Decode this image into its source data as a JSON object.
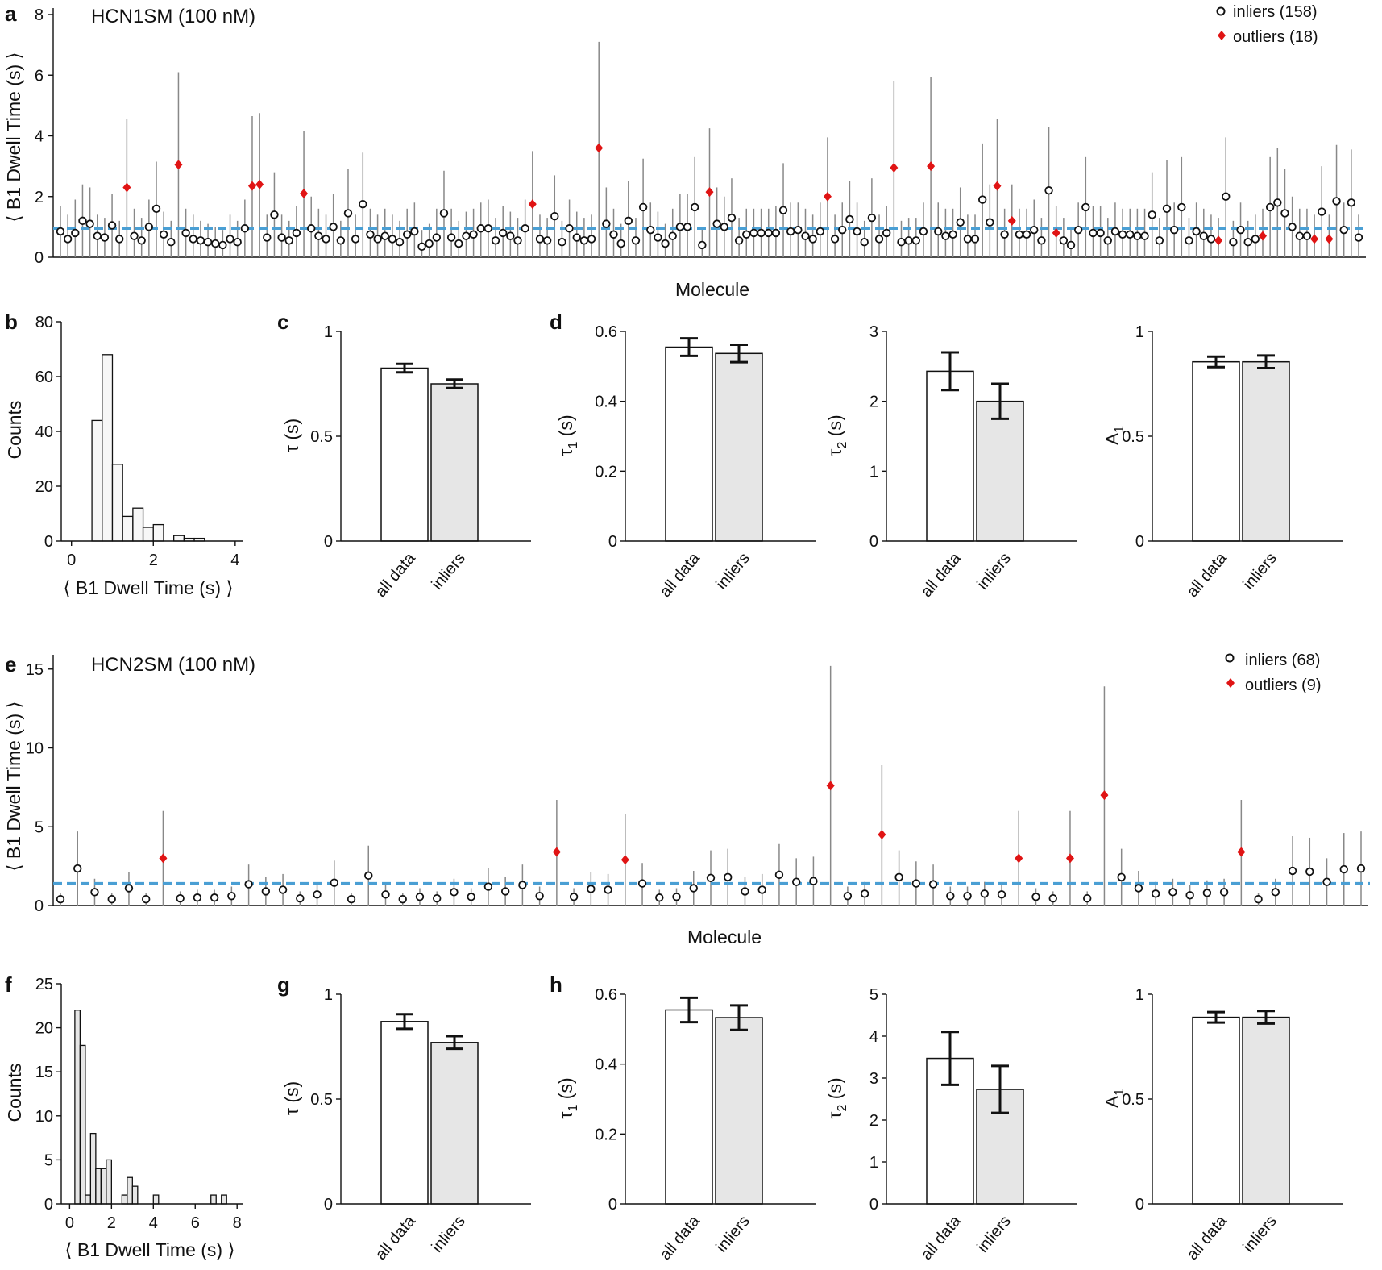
{
  "panels": {
    "a": {
      "letter": "a",
      "title": "HCN1SM (100 nM)",
      "xlabel": "Molecule",
      "ylabel": "⟨ B1 Dwell Time (s) ⟩",
      "yticks": [
        0,
        2,
        4,
        6,
        8
      ],
      "legend_inliers": "inliers (158)",
      "legend_outliers": "outliers (18)"
    },
    "b": {
      "letter": "b",
      "xlabel": "⟨ B1 Dwell Time (s) ⟩",
      "ylabel": "Counts",
      "xticks": [
        0,
        2,
        4
      ],
      "yticks": [
        0,
        20,
        40,
        60,
        80
      ]
    },
    "c": {
      "letter": "c",
      "ylabel": "τ (s)",
      "yticks": [
        "0",
        "0.5",
        "1"
      ],
      "cats": [
        "all data",
        "inliers"
      ]
    },
    "d": {
      "letter": "d",
      "sub": [
        {
          "ylabel_main": "τ",
          "ylabel_sub": "1",
          "ylabel_tail": " (s)",
          "yticks": [
            "0",
            "0.2",
            "0.4",
            "0.6"
          ],
          "cats": [
            "all data",
            "inliers"
          ]
        },
        {
          "ylabel_main": "τ",
          "ylabel_sub": "2",
          "ylabel_tail": " (s)",
          "yticks": [
            "0",
            "1",
            "2",
            "3"
          ],
          "cats": [
            "all data",
            "inliers"
          ]
        },
        {
          "ylabel_main": "A",
          "ylabel_sub": "1",
          "ylabel_tail": "",
          "yticks": [
            "0",
            "0.5",
            "1"
          ],
          "cats": [
            "all data",
            "inliers"
          ]
        }
      ]
    },
    "e": {
      "letter": "e",
      "title": "HCN2SM (100 nM)",
      "xlabel": "Molecule",
      "ylabel": "⟨ B1 Dwell Time (s) ⟩",
      "yticks": [
        0,
        5,
        10,
        15
      ],
      "legend_inliers": "inliers (68)",
      "legend_outliers": "outliers (9)"
    },
    "f": {
      "letter": "f",
      "xlabel": "⟨ B1 Dwell Time (s) ⟩",
      "ylabel": "Counts",
      "xticks": [
        0,
        2,
        4,
        6,
        8
      ],
      "yticks": [
        0,
        5,
        10,
        15,
        20,
        25
      ]
    },
    "g": {
      "letter": "g",
      "ylabel": "τ (s)",
      "yticks": [
        "0",
        "0.5",
        "1"
      ],
      "cats": [
        "all data",
        "inliers"
      ]
    },
    "h": {
      "letter": "h",
      "sub": [
        {
          "ylabel_main": "τ",
          "ylabel_sub": "1",
          "ylabel_tail": " (s)",
          "yticks": [
            "0",
            "0.2",
            "0.4",
            "0.6"
          ],
          "cats": [
            "all data",
            "inliers"
          ]
        },
        {
          "ylabel_main": "τ",
          "ylabel_sub": "2",
          "ylabel_tail": " (s)",
          "yticks": [
            "0",
            "1",
            "2",
            "3",
            "4",
            "5"
          ],
          "cats": [
            "all data",
            "inliers"
          ]
        },
        {
          "ylabel_main": "A",
          "ylabel_sub": "1",
          "ylabel_tail": "",
          "yticks": [
            "0",
            "0.5",
            "1"
          ],
          "cats": [
            "all data",
            "inliers"
          ]
        }
      ]
    }
  },
  "colors": {
    "outlier": "#e01414",
    "mean_line": "#4a9fd4",
    "inlier_bar": "#e6e6e6",
    "errbar_line": "#888888"
  },
  "chart_data": [
    {
      "id": "a",
      "type": "scatter",
      "ylim": [
        0,
        8
      ],
      "threshold": 0.95,
      "n_molecules": 176,
      "values": [
        0.85,
        0.6,
        0.8,
        1.2,
        1.1,
        0.7,
        0.65,
        1.05,
        0.6,
        2.3,
        0.7,
        0.55,
        1.0,
        1.6,
        0.75,
        0.5,
        3.05,
        0.8,
        0.6,
        0.55,
        0.5,
        0.45,
        0.4,
        0.6,
        0.5,
        0.95,
        2.35,
        2.4,
        0.65,
        1.4,
        0.65,
        0.55,
        0.8,
        2.1,
        0.95,
        0.7,
        0.6,
        1.0,
        0.55,
        1.45,
        0.6,
        1.75,
        0.75,
        0.6,
        0.7,
        0.6,
        0.5,
        0.75,
        0.85,
        0.35,
        0.45,
        0.65,
        1.45,
        0.65,
        0.45,
        0.7,
        0.75,
        0.95,
        0.95,
        0.55,
        0.8,
        0.7,
        0.55,
        0.95,
        1.75,
        0.6,
        0.55,
        1.35,
        0.5,
        0.95,
        0.65,
        0.55,
        0.6,
        3.6,
        1.1,
        0.75,
        0.45,
        1.2,
        0.55,
        1.65,
        0.9,
        0.65,
        0.45,
        0.7,
        1.0,
        1.0,
        1.65,
        0.4,
        2.15,
        1.1,
        1.0,
        1.3,
        0.55,
        0.75,
        0.8,
        0.8,
        0.8,
        0.8,
        1.55,
        0.85,
        0.9,
        0.7,
        0.6,
        0.85,
        2.0,
        0.6,
        0.9,
        1.25,
        0.85,
        0.5,
        1.3,
        0.6,
        0.8,
        2.95,
        0.5,
        0.55,
        0.55,
        0.85,
        3.0,
        0.85,
        0.7,
        0.75,
        1.15,
        0.6,
        0.6,
        1.9,
        1.15,
        2.35,
        0.75,
        1.2,
        0.75,
        0.75,
        0.9,
        0.55,
        2.2,
        0.8,
        0.55,
        0.4,
        0.9,
        1.65,
        0.8,
        0.8,
        0.55,
        0.85,
        0.75,
        0.75,
        0.7,
        0.7,
        1.4,
        0.55,
        1.6,
        0.9,
        1.65,
        0.55,
        0.85,
        0.7,
        0.6,
        0.55,
        2.0,
        0.5,
        0.9,
        0.5,
        0.6,
        0.7,
        1.65,
        1.8,
        1.45,
        1.0,
        0.7,
        0.7,
        0.6,
        1.5,
        0.6,
        1.85,
        0.9,
        1.8,
        0.65
      ],
      "upper": [
        1.7,
        1.4,
        1.9,
        2.4,
        2.3,
        1.4,
        1.3,
        2.1,
        1.2,
        4.55,
        1.6,
        1.3,
        1.9,
        3.15,
        1.5,
        1.2,
        6.1,
        1.6,
        1.4,
        1.2,
        1.1,
        1.0,
        0.9,
        1.4,
        1.2,
        1.9,
        4.65,
        4.75,
        1.4,
        2.8,
        1.4,
        1.2,
        1.7,
        4.15,
        2.0,
        1.6,
        1.4,
        2.1,
        1.2,
        2.9,
        1.4,
        3.45,
        1.6,
        1.4,
        1.6,
        1.4,
        1.2,
        1.6,
        1.8,
        0.9,
        1.1,
        1.6,
        2.85,
        1.6,
        1.2,
        1.5,
        1.6,
        1.8,
        1.9,
        1.3,
        1.7,
        1.5,
        1.3,
        1.9,
        3.5,
        1.4,
        1.3,
        2.7,
        1.2,
        1.9,
        1.5,
        1.3,
        1.4,
        7.1,
        2.3,
        1.6,
        1.1,
        2.5,
        1.3,
        3.25,
        1.8,
        1.5,
        1.1,
        1.6,
        2.1,
        2.1,
        3.3,
        1.0,
        4.25,
        2.3,
        2.0,
        2.6,
        1.3,
        1.6,
        1.6,
        1.6,
        1.6,
        1.7,
        3.1,
        1.8,
        1.8,
        1.6,
        1.4,
        1.8,
        3.95,
        1.4,
        1.8,
        2.5,
        1.8,
        1.2,
        2.6,
        1.4,
        1.7,
        5.8,
        1.2,
        1.3,
        1.3,
        1.8,
        5.95,
        1.8,
        1.6,
        1.6,
        2.3,
        1.4,
        1.4,
        3.75,
        2.4,
        4.55,
        1.6,
        2.4,
        1.6,
        1.6,
        1.9,
        1.3,
        4.3,
        1.7,
        1.3,
        1.0,
        1.8,
        3.3,
        1.7,
        1.7,
        1.3,
        1.8,
        1.6,
        1.6,
        1.6,
        1.6,
        2.8,
        1.3,
        3.2,
        1.8,
        3.3,
        1.3,
        1.8,
        1.6,
        1.4,
        1.3,
        3.95,
        1.2,
        1.8,
        1.2,
        1.4,
        1.6,
        3.3,
        3.6,
        2.9,
        2.0,
        1.6,
        1.6,
        1.4,
        3.0,
        1.4,
        3.7,
        1.8,
        3.55,
        1.4
      ],
      "outliers": [
        9,
        16,
        26,
        27,
        33,
        64,
        73,
        88,
        104,
        113,
        118,
        127,
        129,
        135,
        157,
        163,
        170,
        172
      ]
    },
    {
      "id": "b",
      "type": "bar",
      "bin_edges": [
        0.25,
        0.5,
        0.75,
        1.0,
        1.25,
        1.5,
        1.75,
        2.0,
        2.25,
        2.5,
        2.75,
        3.0,
        3.25,
        3.5
      ],
      "values": [
        0,
        44,
        68,
        28,
        9,
        12,
        5,
        6,
        0,
        2,
        1,
        1,
        0
      ],
      "xlim": [
        -0.25,
        4.2
      ],
      "ylim": [
        0,
        80
      ]
    },
    {
      "id": "c",
      "type": "bar",
      "categories": [
        "all data",
        "inliers"
      ],
      "values": [
        0.825,
        0.75
      ],
      "errors": [
        0.02,
        0.02
      ],
      "ylim": [
        0,
        1
      ]
    },
    {
      "id": "d",
      "type": "bar",
      "subplots": [
        {
          "categories": [
            "all data",
            "inliers"
          ],
          "values": [
            0.555,
            0.537
          ],
          "errors": [
            0.025,
            0.025
          ],
          "ylim": [
            0,
            0.6
          ]
        },
        {
          "categories": [
            "all data",
            "inliers"
          ],
          "values": [
            2.43,
            2.0
          ],
          "errors": [
            0.27,
            0.25
          ],
          "ylim": [
            0,
            3
          ]
        },
        {
          "categories": [
            "all data",
            "inliers"
          ],
          "values": [
            0.855,
            0.855
          ],
          "errors": [
            0.025,
            0.03
          ],
          "ylim": [
            0,
            1
          ]
        }
      ]
    },
    {
      "id": "e",
      "type": "scatter",
      "ylim": [
        0,
        15.5
      ],
      "threshold": 1.4,
      "n_molecules": 77,
      "values": [
        0.4,
        2.35,
        0.85,
        0.4,
        1.1,
        0.4,
        3.0,
        0.45,
        0.5,
        0.5,
        0.6,
        1.35,
        0.9,
        1.0,
        0.45,
        0.7,
        1.45,
        0.4,
        1.9,
        0.7,
        0.4,
        0.55,
        0.45,
        0.85,
        0.55,
        1.2,
        0.9,
        1.3,
        0.6,
        3.4,
        0.55,
        1.05,
        1.0,
        2.9,
        1.4,
        0.5,
        0.55,
        1.1,
        1.75,
        1.8,
        0.9,
        1.0,
        1.95,
        1.5,
        1.55,
        7.6,
        0.6,
        0.75,
        4.5,
        1.8,
        1.4,
        1.35,
        0.6,
        0.6,
        0.75,
        0.7,
        3.0,
        0.55,
        0.45,
        3.0,
        0.45,
        7.0,
        1.8,
        1.1,
        0.75,
        0.85,
        0.65,
        0.8,
        0.85,
        3.4,
        0.4,
        0.85,
        2.2,
        2.15,
        1.5,
        2.3,
        2.35
      ],
      "upper": [
        0.8,
        4.7,
        1.7,
        0.8,
        2.1,
        0.8,
        6.0,
        0.9,
        1.0,
        1.0,
        1.2,
        2.6,
        1.8,
        2.0,
        0.9,
        1.4,
        2.85,
        0.8,
        3.8,
        1.4,
        0.8,
        1.1,
        0.9,
        1.7,
        1.1,
        2.4,
        1.8,
        2.6,
        1.2,
        6.7,
        1.1,
        2.1,
        2.0,
        5.8,
        2.7,
        1.0,
        1.1,
        2.2,
        3.5,
        3.6,
        1.8,
        2.0,
        3.9,
        3.0,
        3.1,
        15.2,
        1.2,
        1.5,
        8.9,
        3.5,
        2.8,
        2.6,
        1.2,
        1.2,
        1.5,
        1.4,
        6.0,
        1.1,
        0.9,
        6.0,
        0.9,
        13.9,
        3.6,
        2.2,
        1.5,
        1.7,
        1.3,
        1.6,
        1.7,
        6.7,
        0.8,
        1.7,
        4.4,
        4.3,
        3.0,
        4.6,
        4.7
      ],
      "outliers": [
        6,
        29,
        33,
        45,
        48,
        56,
        59,
        61,
        69
      ]
    },
    {
      "id": "f",
      "type": "bar",
      "bin_edges": [
        0,
        0.25,
        0.5,
        0.75,
        1.0,
        1.25,
        1.5,
        1.75,
        2.0,
        2.25,
        2.5,
        2.75,
        3.0,
        3.25,
        3.5,
        3.75,
        4.0,
        4.25,
        4.5,
        4.75,
        5.0,
        5.25,
        5.5,
        5.75,
        6.0,
        6.25,
        6.5,
        6.75,
        7.0,
        7.25,
        7.5,
        7.75,
        8.0
      ],
      "values": [
        0,
        22,
        18,
        1,
        8,
        4,
        4,
        5,
        0,
        0,
        1,
        3,
        2,
        0,
        0,
        0,
        1,
        0,
        0,
        0,
        0,
        0,
        0,
        0,
        0,
        0,
        0,
        1,
        0,
        1,
        0,
        0
      ],
      "xlim": [
        -0.4,
        8.3
      ],
      "ylim": [
        0,
        25
      ]
    },
    {
      "id": "g",
      "type": "bar",
      "categories": [
        "all data",
        "inliers"
      ],
      "values": [
        0.87,
        0.77
      ],
      "errors": [
        0.035,
        0.03
      ],
      "ylim": [
        0,
        1
      ]
    },
    {
      "id": "h",
      "type": "bar",
      "subplots": [
        {
          "categories": [
            "all data",
            "inliers"
          ],
          "values": [
            0.555,
            0.533
          ],
          "errors": [
            0.035,
            0.035
          ],
          "ylim": [
            0,
            0.6
          ]
        },
        {
          "categories": [
            "all data",
            "inliers"
          ],
          "values": [
            3.47,
            2.73
          ],
          "errors": [
            0.63,
            0.56
          ],
          "ylim": [
            0,
            5
          ]
        },
        {
          "categories": [
            "all data",
            "inliers"
          ],
          "values": [
            0.89,
            0.89
          ],
          "errors": [
            0.025,
            0.03
          ],
          "ylim": [
            0,
            1
          ]
        }
      ]
    }
  ]
}
